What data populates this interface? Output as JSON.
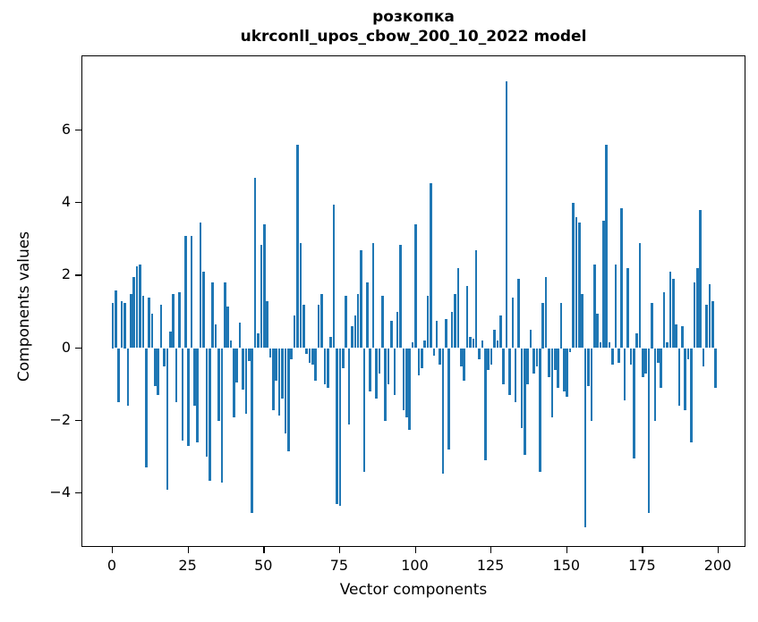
{
  "title": {
    "line1": "розкопка",
    "line2": "ukrconll_upos_cbow_200_10_2022 model"
  },
  "chart_data": {
    "type": "bar",
    "title": "розкопка",
    "subtitle": "ukrconll_upos_cbow_200_10_2022 model",
    "xlabel": "Vector components",
    "ylabel": "Components values",
    "x_range": [
      0,
      200
    ],
    "ylim": [
      -5.55,
      8.05
    ],
    "xticks": [
      0,
      25,
      50,
      75,
      100,
      125,
      150,
      175,
      200
    ],
    "yticks": [
      6,
      4,
      2,
      0,
      -2,
      -4
    ],
    "grid": false,
    "legend": "none",
    "bar_color": "#1f77b4",
    "n_components": 200,
    "values": [
      1.25,
      1.6,
      -1.5,
      1.3,
      1.25,
      -1.6,
      1.5,
      1.95,
      2.25,
      2.3,
      1.45,
      -3.3,
      1.4,
      0.95,
      -1.05,
      -1.3,
      1.2,
      -0.5,
      -3.9,
      0.45,
      1.5,
      -1.5,
      1.55,
      -2.55,
      3.1,
      -2.7,
      3.1,
      -1.6,
      -2.6,
      3.45,
      2.1,
      -3.0,
      -3.65,
      1.8,
      0.65,
      -2.0,
      -3.7,
      1.8,
      1.15,
      0.2,
      -1.9,
      -0.95,
      0.7,
      -1.15,
      -1.8,
      -0.35,
      -4.55,
      4.7,
      0.4,
      2.85,
      3.4,
      1.3,
      -0.25,
      -1.7,
      -0.9,
      -1.85,
      -1.4,
      -2.35,
      -2.85,
      -0.3,
      0.9,
      5.6,
      2.9,
      1.2,
      -0.15,
      -0.4,
      -0.45,
      -0.9,
      1.2,
      1.5,
      -1.0,
      -1.1,
      0.3,
      3.95,
      -4.3,
      -4.35,
      -0.55,
      1.45,
      -2.1,
      0.6,
      0.9,
      1.5,
      2.7,
      -3.4,
      1.8,
      -1.2,
      2.9,
      -1.4,
      -0.7,
      1.45,
      -2.0,
      -1.0,
      0.75,
      -1.3,
      1.0,
      2.85,
      -1.7,
      -1.9,
      -2.25,
      0.15,
      3.4,
      -0.75,
      -0.55,
      0.2,
      1.45,
      4.55,
      -0.2,
      0.75,
      -0.45,
      -3.45,
      0.8,
      -2.8,
      1.0,
      1.5,
      2.2,
      -0.5,
      -0.9,
      1.7,
      0.3,
      0.25,
      2.7,
      -0.3,
      0.2,
      -3.1,
      -0.6,
      -0.45,
      0.5,
      0.2,
      0.9,
      -1.0,
      7.35,
      -1.3,
      1.4,
      -1.5,
      1.9,
      -2.2,
      -2.95,
      -1.0,
      0.5,
      -0.7,
      -0.5,
      -3.4,
      1.25,
      1.95,
      -0.8,
      -1.9,
      -0.6,
      -1.1,
      1.25,
      -1.2,
      -1.35,
      -0.1,
      4.0,
      3.6,
      3.45,
      1.5,
      -4.95,
      -1.05,
      -2.0,
      2.3,
      0.95,
      0.15,
      3.5,
      5.6,
      0.15,
      -0.45,
      2.3,
      -0.4,
      3.85,
      -1.45,
      2.2,
      -0.45,
      -3.05,
      0.4,
      2.9,
      -0.8,
      -0.7,
      -4.55,
      1.25,
      -2.0,
      -0.4,
      -1.1,
      1.55,
      0.15,
      2.1,
      1.9,
      0.65,
      -1.6,
      0.6,
      -1.7,
      -0.3,
      -2.6,
      1.8,
      2.2,
      3.8,
      -0.5,
      1.2,
      1.75,
      1.3,
      -1.1
    ]
  }
}
